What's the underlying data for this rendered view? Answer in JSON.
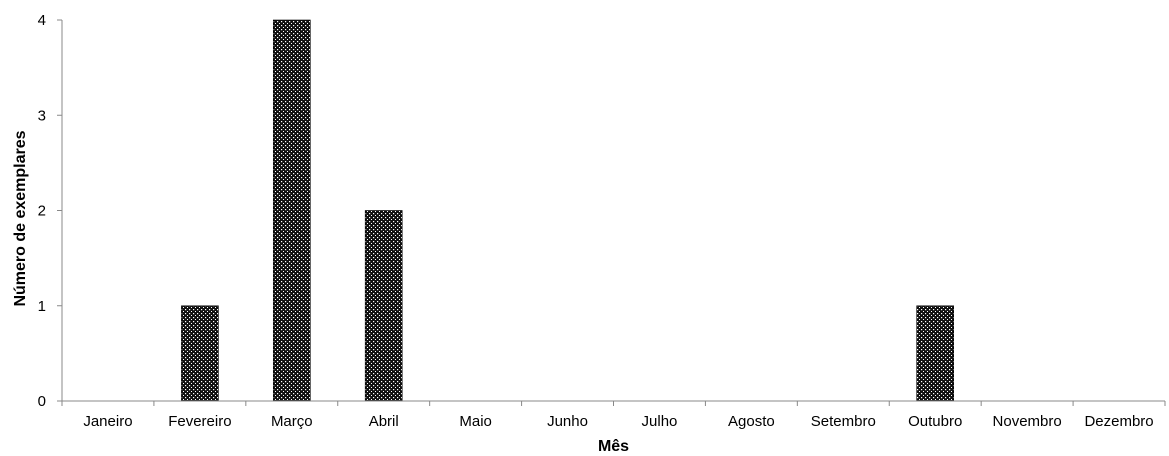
{
  "chart_data": {
    "type": "bar",
    "title": "",
    "xlabel": "Mês",
    "ylabel": "Número de exemplares",
    "categories": [
      "Janeiro",
      "Fevereiro",
      "Março",
      "Abril",
      "Maio",
      "Junho",
      "Julho",
      "Agosto",
      "Setembro",
      "Outubro",
      "Novembro",
      "Dezembro"
    ],
    "values": [
      0,
      1,
      4,
      2,
      0,
      0,
      0,
      0,
      0,
      1,
      0,
      0
    ],
    "ylim": [
      0,
      4
    ],
    "yticks": [
      0,
      1,
      2,
      3,
      4
    ],
    "grid": false,
    "legend": "none",
    "bar_fill": "dotted-black"
  }
}
